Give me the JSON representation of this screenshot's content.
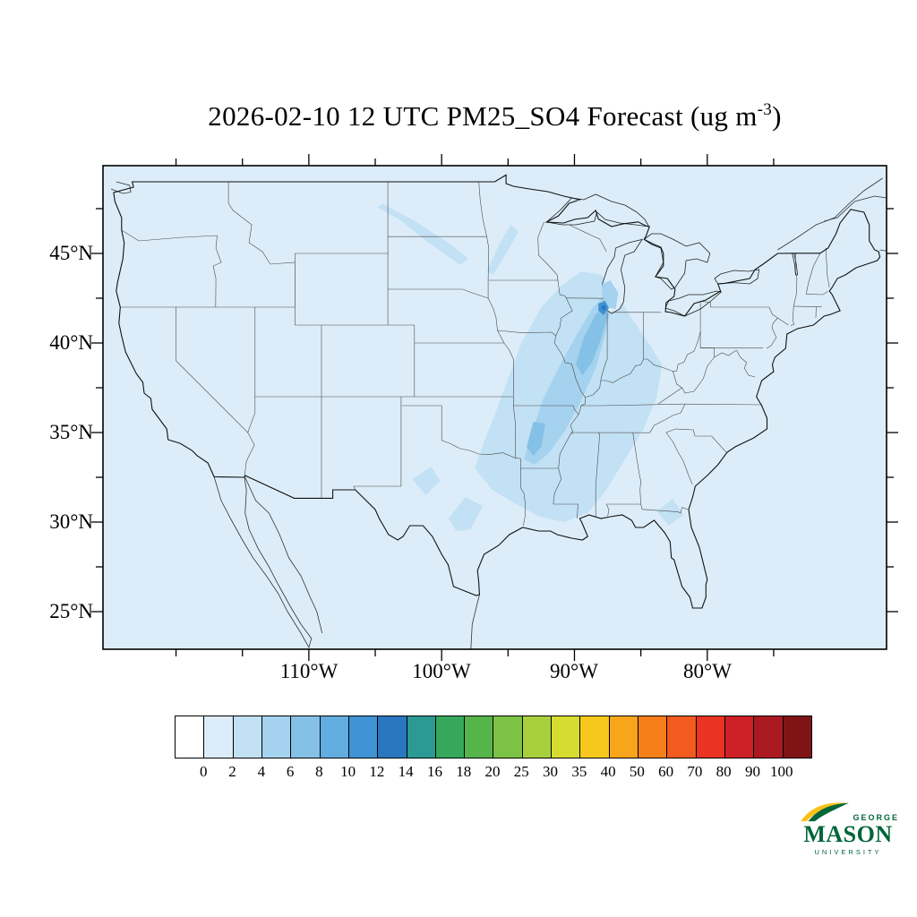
{
  "title": {
    "main": "2026-02-10 12 UTC PM25_SO4 Forecast (ug m",
    "superscript": "-3",
    "suffix": ")"
  },
  "map": {
    "background_value_color": "#dcedf9",
    "lat_tick_labels": [
      "45°N",
      "40°N",
      "35°N",
      "30°N",
      "25°N"
    ],
    "lon_tick_labels": [
      "110°W",
      "100°W",
      "90°W",
      "80°W"
    ]
  },
  "colorbar": {
    "tick_labels": [
      "0",
      "2",
      "4",
      "6",
      "8",
      "10",
      "12",
      "14",
      "16",
      "18",
      "20",
      "25",
      "30",
      "35",
      "40",
      "50",
      "60",
      "70",
      "80",
      "90",
      "100"
    ],
    "colors": [
      "#ffffff",
      "#dcedf9",
      "#c3e1f4",
      "#a5d2ee",
      "#85c1e7",
      "#62ade0",
      "#3f93d4",
      "#2a77c0",
      "#2b9a94",
      "#35a85c",
      "#55b54b",
      "#7cc245",
      "#a8d03c",
      "#d7dd30",
      "#f6c81d",
      "#f9a51b",
      "#f67f1a",
      "#f25a1e",
      "#e93323",
      "#ce2027",
      "#ab1a20",
      "#7f1416"
    ]
  },
  "logo": {
    "line1": "GEORGE",
    "line2": "MASON",
    "line3": "UNIVERSITY",
    "green": "#00653a",
    "gold": "#f8c21a"
  },
  "chart_data": {
    "type": "heatmap",
    "title": "2026-02-10 12 UTC PM25_SO4 Forecast (ug m-3)",
    "variable": "PM25_SO4",
    "units": "ug m-3",
    "valid_time": "2026-02-10 12 UTC",
    "projection": "lat-lon over continental United States",
    "lat_ticks_deg_n": [
      45,
      40,
      35,
      30,
      25
    ],
    "lon_ticks_deg_w": [
      110,
      100,
      90,
      80
    ],
    "levels": [
      0,
      2,
      4,
      6,
      8,
      10,
      12,
      14,
      16,
      18,
      20,
      25,
      30,
      35,
      40,
      50,
      60,
      70,
      80,
      90,
      100
    ],
    "palette": [
      "#ffffff",
      "#dcedf9",
      "#c3e1f4",
      "#a5d2ee",
      "#85c1e7",
      "#62ade0",
      "#3f93d4",
      "#2a77c0",
      "#2b9a94",
      "#35a85c",
      "#55b54b",
      "#7cc245",
      "#a8d03c",
      "#d7dd30",
      "#f6c81d",
      "#f9a51b",
      "#f67f1a",
      "#f25a1e",
      "#e93323",
      "#ce2027",
      "#ab1a20",
      "#7f1416"
    ],
    "legend_position": "bottom",
    "grid": false,
    "field_summary": [
      {
        "region": "most of domain (oceans and western/eastern US)",
        "value_range_ug_m3": "0-2"
      },
      {
        "region": "broad corridor from Wisconsin-Illinois south through Missouri, Arkansas, Louisiana, Mississippi, Tennessee, Kentucky, Indiana, Ohio",
        "value_range_ug_m3": "2-6"
      },
      {
        "region": "central Illinois-Indiana and central Arkansas",
        "value_range_ug_m3": "6-8"
      },
      {
        "region": "Chicago / southern Lake Michigan hotspot",
        "value_range_ug_m3": "10-14"
      },
      {
        "region": "faint diagonal streak Montana-Dakotas-Minnesota; small patches central Texas and south Georgia / north Florida",
        "value_range_ug_m3": "2-4"
      }
    ]
  }
}
